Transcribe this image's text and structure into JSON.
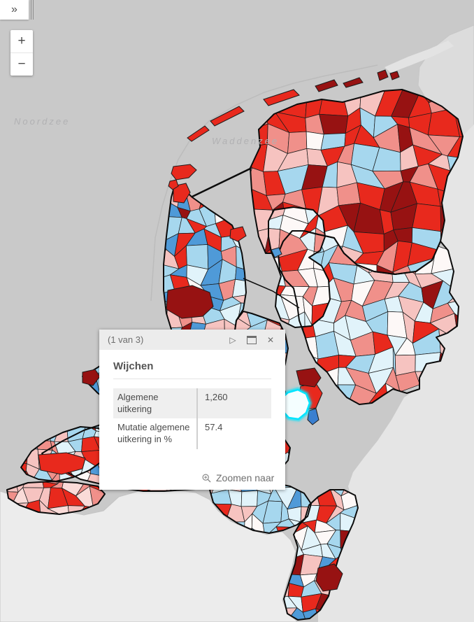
{
  "map": {
    "labels": {
      "noordzee": "Noordzee",
      "waddenzee": "Waddenzee"
    },
    "palette": {
      "darkred": "#971212",
      "red": "#e8291d",
      "salmon": "#f0908a",
      "pink": "#f6c3c0",
      "lightpink": "#fadbd8",
      "white": "#fdf8f7",
      "palecyan": "#e1f3fa",
      "lightblue": "#a6d7ee",
      "blue": "#4f9ad8",
      "deepblue": "#3a7fd0",
      "highlight": "#00e5ff",
      "sea": "#c9c9c9",
      "foreign_north": "#dcdcdc",
      "foreign_east": "#e5e5e5",
      "foreign_south": "#ececec",
      "border": "#0b0b0b",
      "muni_border": "#1c1c1c"
    }
  },
  "controls": {
    "expand": "»",
    "zoom_in": "+",
    "zoom_out": "−"
  },
  "popup": {
    "pager": "(1 van 3)",
    "next_icon": "▷",
    "close_icon": "✕",
    "title": "Wijchen",
    "rows": [
      {
        "label": "Algemene uitkering",
        "value": "1,260"
      },
      {
        "label": "Mutatie algemene uitkering in %",
        "value": "57.4"
      }
    ],
    "zoom_to": "Zoomen naar"
  }
}
